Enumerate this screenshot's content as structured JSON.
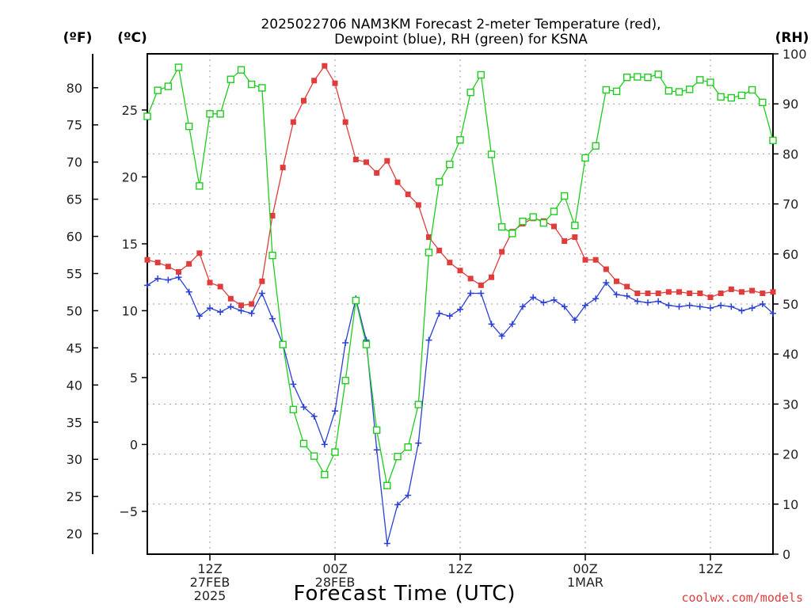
{
  "chart_data": {
    "type": "line",
    "title": "2025022706 NAM3KM Forecast 2-meter Temperature (red),",
    "subtitle": "Dewpoint (blue), RH (green) for KSNA",
    "xlabel": "Forecast Time (UTC)",
    "credit": "coolwx.com/models",
    "unit_f": "(ºF)",
    "unit_c": "(ºC)",
    "unit_rh": "(RH)",
    "x_start_hour": 6,
    "x_end_hour": 66,
    "c_lim": [
      -8.2,
      29.2
    ],
    "rh_lim": [
      0,
      100
    ],
    "f_lim": [
      17,
      85
    ],
    "colors": {
      "temperature": "#e03c3c",
      "dewpoint": "#2a3fd6",
      "rh": "#1fcc1f"
    },
    "x_ticks": [
      {
        "hour": 12,
        "lines": [
          "12Z",
          "27FEB",
          "2025"
        ]
      },
      {
        "hour": 24,
        "lines": [
          "00Z",
          "28FEB"
        ]
      },
      {
        "hour": 36,
        "lines": [
          "12Z"
        ]
      },
      {
        "hour": 48,
        "lines": [
          "00Z",
          "1MAR"
        ]
      },
      {
        "hour": 60,
        "lines": [
          "12Z"
        ]
      }
    ],
    "c_ticks": [
      -5,
      0,
      5,
      10,
      15,
      20,
      25
    ],
    "f_ticks": [
      20,
      25,
      30,
      35,
      40,
      45,
      50,
      55,
      60,
      65,
      70,
      75,
      80
    ],
    "rh_ticks": [
      0,
      10,
      20,
      30,
      40,
      50,
      60,
      70,
      80,
      90,
      100
    ],
    "series": [
      {
        "name": "temperature",
        "axis": "c",
        "marker": "filled-square",
        "x": [
          6,
          7,
          8,
          9,
          10,
          11,
          12,
          13,
          14,
          15,
          16,
          17,
          18,
          19,
          20,
          21,
          22,
          23,
          24,
          25,
          26,
          27,
          28,
          29,
          30,
          31,
          32,
          33,
          34,
          35,
          36,
          37,
          38,
          39,
          40,
          41,
          42,
          43,
          44,
          45,
          46,
          47,
          48,
          49,
          50,
          51,
          52,
          53,
          54,
          55,
          56,
          57,
          58,
          59,
          60,
          61,
          62,
          63,
          64,
          65,
          66
        ],
        "values": [
          13.8,
          13.6,
          13.3,
          12.9,
          13.5,
          14.3,
          12.1,
          11.8,
          10.9,
          10.4,
          10.5,
          12.2,
          17.1,
          20.7,
          24.1,
          25.7,
          27.2,
          28.3,
          27.0,
          24.1,
          21.3,
          21.1,
          20.3,
          21.2,
          19.6,
          18.7,
          17.9,
          15.5,
          14.5,
          13.6,
          13.0,
          12.4,
          11.9,
          12.5,
          14.4,
          15.9,
          16.5,
          16.9,
          16.7,
          16.3,
          15.2,
          15.5,
          13.8,
          13.8,
          13.1,
          12.2,
          11.8,
          11.3,
          11.3,
          11.3,
          11.4,
          11.4,
          11.3,
          11.3,
          11.0,
          11.3,
          11.6,
          11.4,
          11.5,
          11.3,
          11.4
        ]
      },
      {
        "name": "dewpoint",
        "axis": "c",
        "marker": "plus",
        "x": [
          6,
          7,
          8,
          9,
          10,
          11,
          12,
          13,
          14,
          15,
          16,
          17,
          18,
          19,
          20,
          21,
          22,
          23,
          24,
          25,
          26,
          27,
          28,
          29,
          30,
          31,
          32,
          33,
          34,
          35,
          36,
          37,
          38,
          39,
          40,
          41,
          42,
          43,
          44,
          45,
          46,
          47,
          48,
          49,
          50,
          51,
          52,
          53,
          54,
          55,
          56,
          57,
          58,
          59,
          60,
          61,
          62,
          63,
          64,
          65,
          66
        ],
        "values": [
          11.9,
          12.4,
          12.3,
          12.5,
          11.4,
          9.6,
          10.2,
          9.9,
          10.3,
          10.0,
          9.8,
          11.3,
          9.4,
          7.5,
          4.5,
          2.8,
          2.1,
          0.0,
          2.5,
          7.6,
          10.9,
          7.8,
          -0.4,
          -7.4,
          -4.5,
          -3.8,
          0.1,
          7.8,
          9.8,
          9.6,
          10.1,
          11.3,
          11.3,
          9.0,
          8.1,
          9.0,
          10.3,
          11.0,
          10.6,
          10.8,
          10.3,
          9.3,
          10.4,
          10.9,
          12.1,
          11.2,
          11.1,
          10.7,
          10.6,
          10.7,
          10.4,
          10.3,
          10.4,
          10.3,
          10.2,
          10.4,
          10.3,
          10.0,
          10.2,
          10.5,
          9.8
        ]
      },
      {
        "name": "rh",
        "axis": "rh",
        "marker": "open-square",
        "x": [
          6,
          7,
          8,
          9,
          10,
          11,
          12,
          13,
          14,
          15,
          16,
          17,
          18,
          19,
          20,
          21,
          22,
          23,
          24,
          25,
          26,
          27,
          28,
          29,
          30,
          31,
          32,
          33,
          34,
          35,
          36,
          37,
          38,
          39,
          40,
          41,
          42,
          43,
          44,
          45,
          46,
          47,
          48,
          49,
          50,
          51,
          52,
          53,
          54,
          55,
          56,
          57,
          58,
          59,
          60,
          61,
          62,
          63,
          64,
          65,
          66
        ],
        "values": [
          87.5,
          92.7,
          93.5,
          97.3,
          85.5,
          73.6,
          88,
          88,
          94.9,
          96.8,
          93.9,
          93.2,
          59.7,
          41.9,
          28.9,
          22.1,
          19.6,
          15.9,
          20.4,
          34.7,
          50.7,
          41.9,
          24.8,
          13.7,
          19.5,
          21.4,
          29.9,
          60.3,
          74.4,
          77.9,
          82.8,
          92.3,
          95.8,
          79.9,
          65.4,
          64.1,
          66.5,
          67.4,
          66.2,
          68.5,
          71.6,
          65.7,
          79.2,
          81.6,
          92.8,
          92.5,
          95.3,
          95.4,
          95.3,
          95.9,
          92.6,
          92.4,
          92.9,
          94.8,
          94.3,
          91.4,
          91.2,
          91.7,
          92.8,
          90.3,
          82.7
        ]
      }
    ]
  }
}
